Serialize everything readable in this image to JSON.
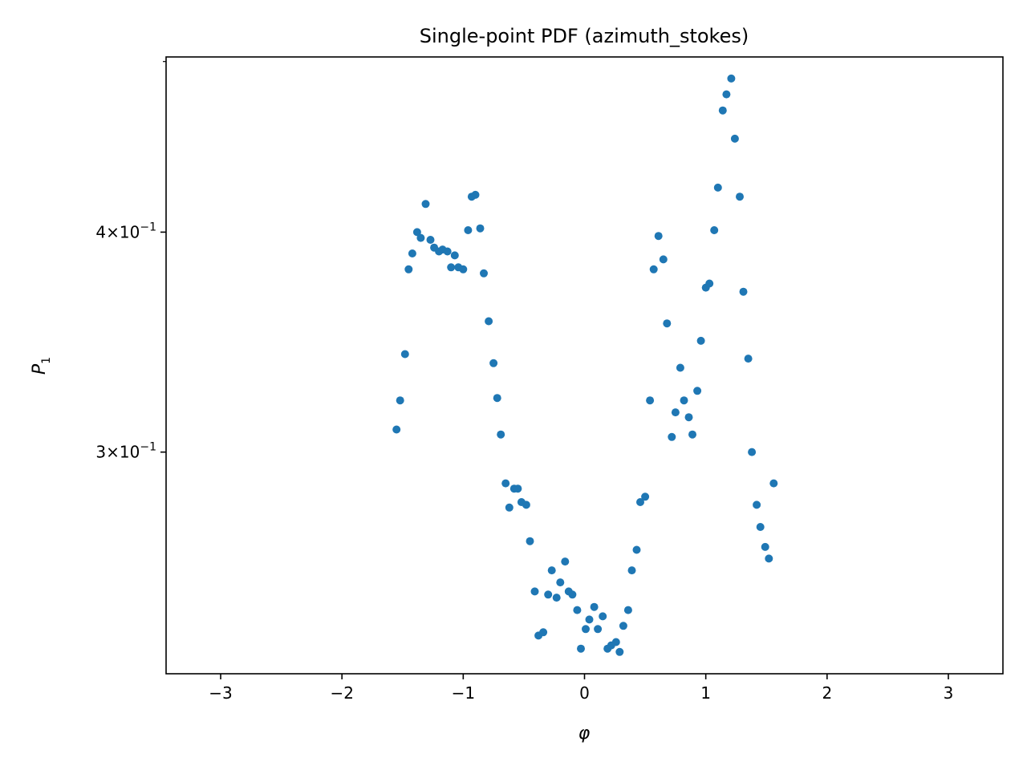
{
  "chart_data": {
    "type": "scatter",
    "title": "Single-point PDF (azimuth_stokes)",
    "xlabel": "φ",
    "ylabel": {
      "base": "P",
      "sub": "1"
    },
    "xlim": [
      -3.45,
      3.45
    ],
    "yscale": "log",
    "ylim": [
      0.2245,
      0.503
    ],
    "grid": false,
    "marker_color": "#1f77b4",
    "x_ticks": [
      {
        "value": -3,
        "label": "−3"
      },
      {
        "value": -2,
        "label": "−2"
      },
      {
        "value": -1,
        "label": "−1"
      },
      {
        "value": 0,
        "label": "0"
      },
      {
        "value": 1,
        "label": "1"
      },
      {
        "value": 2,
        "label": "2"
      },
      {
        "value": 3,
        "label": "3"
      }
    ],
    "y_major_ticks": [
      {
        "value": 0.3,
        "mantissa": "3",
        "base": "10",
        "exp": "−1"
      },
      {
        "value": 0.4,
        "mantissa": "4",
        "base": "10",
        "exp": "−1"
      }
    ],
    "y_minor_ticks": [
      0.5
    ],
    "points": [
      [
        -1.55,
        0.309
      ],
      [
        -1.52,
        0.321
      ],
      [
        -1.48,
        0.341
      ],
      [
        -1.45,
        0.381
      ],
      [
        -1.42,
        0.389
      ],
      [
        -1.38,
        0.4
      ],
      [
        -1.35,
        0.397
      ],
      [
        -1.31,
        0.415
      ],
      [
        -1.27,
        0.396
      ],
      [
        -1.24,
        0.392
      ],
      [
        -1.2,
        0.39
      ],
      [
        -1.17,
        0.391
      ],
      [
        -1.13,
        0.39
      ],
      [
        -1.1,
        0.382
      ],
      [
        -1.07,
        0.388
      ],
      [
        -1.04,
        0.382
      ],
      [
        -1.0,
        0.381
      ],
      [
        -0.96,
        0.401
      ],
      [
        -0.93,
        0.419
      ],
      [
        -0.9,
        0.42
      ],
      [
        -0.86,
        0.402
      ],
      [
        -0.83,
        0.379
      ],
      [
        -0.79,
        0.356
      ],
      [
        -0.75,
        0.337
      ],
      [
        -0.72,
        0.322
      ],
      [
        -0.69,
        0.307
      ],
      [
        -0.65,
        0.288
      ],
      [
        -0.62,
        0.279
      ],
      [
        -0.58,
        0.286
      ],
      [
        -0.55,
        0.286
      ],
      [
        -0.52,
        0.281
      ],
      [
        -0.48,
        0.28
      ],
      [
        -0.45,
        0.267
      ],
      [
        -0.41,
        0.25
      ],
      [
        -0.38,
        0.236
      ],
      [
        -0.34,
        0.237
      ],
      [
        -0.3,
        0.249
      ],
      [
        -0.27,
        0.257
      ],
      [
        -0.23,
        0.248
      ],
      [
        -0.2,
        0.253
      ],
      [
        -0.16,
        0.26
      ],
      [
        -0.13,
        0.25
      ],
      [
        -0.1,
        0.249
      ],
      [
        -0.06,
        0.244
      ],
      [
        -0.03,
        0.232
      ],
      [
        0.01,
        0.238
      ],
      [
        0.04,
        0.241
      ],
      [
        0.08,
        0.245
      ],
      [
        0.11,
        0.238
      ],
      [
        0.15,
        0.242
      ],
      [
        0.19,
        0.232
      ],
      [
        0.22,
        0.233
      ],
      [
        0.26,
        0.234
      ],
      [
        0.29,
        0.231
      ],
      [
        0.32,
        0.239
      ],
      [
        0.36,
        0.244
      ],
      [
        0.39,
        0.257
      ],
      [
        0.43,
        0.264
      ],
      [
        0.46,
        0.281
      ],
      [
        0.5,
        0.283
      ],
      [
        0.54,
        0.321
      ],
      [
        0.57,
        0.381
      ],
      [
        0.61,
        0.398
      ],
      [
        0.65,
        0.386
      ],
      [
        0.68,
        0.355
      ],
      [
        0.72,
        0.306
      ],
      [
        0.75,
        0.316
      ],
      [
        0.79,
        0.335
      ],
      [
        0.82,
        0.321
      ],
      [
        0.86,
        0.314
      ],
      [
        0.89,
        0.307
      ],
      [
        0.93,
        0.325
      ],
      [
        0.96,
        0.347
      ],
      [
        1.0,
        0.372
      ],
      [
        1.03,
        0.374
      ],
      [
        1.07,
        0.401
      ],
      [
        1.1,
        0.424
      ],
      [
        1.14,
        0.469
      ],
      [
        1.17,
        0.479
      ],
      [
        1.21,
        0.489
      ],
      [
        1.24,
        0.452
      ],
      [
        1.28,
        0.419
      ],
      [
        1.31,
        0.37
      ],
      [
        1.35,
        0.339
      ],
      [
        1.38,
        0.3
      ],
      [
        1.42,
        0.28
      ],
      [
        1.45,
        0.272
      ],
      [
        1.49,
        0.265
      ],
      [
        1.52,
        0.261
      ],
      [
        1.56,
        0.288
      ]
    ]
  }
}
